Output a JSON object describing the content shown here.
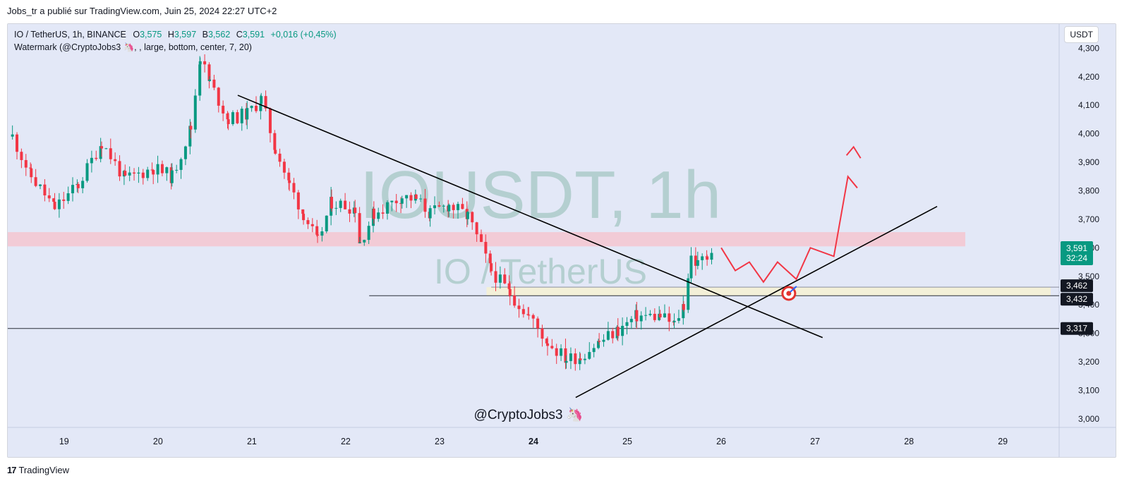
{
  "header": {
    "published_line": "Jobs_tr a publié sur TradingView.com, Juin 25, 2024 22:27 UTC+2"
  },
  "legend": {
    "symbol_line_prefix": "IO / TetherUS, 1h, BINANCE",
    "o_label": "O",
    "o_value": "3,575",
    "h_label": "H",
    "h_value": "3,597",
    "b_label": "B",
    "b_value": "3,562",
    "c_label": "C",
    "c_value": "3,591",
    "change": "+0,016 (+0,45%)",
    "watermark_line": "Watermark (@CryptoJobs3 🦄, , large, bottom, center, 7, 20)"
  },
  "currency_button": "USDT",
  "watermark": {
    "big_text": "IOUSDT, 1h",
    "sub_text": "IO / TetherUS",
    "handle": "@CryptoJobs3 🦄"
  },
  "footer": {
    "logo_mark": "17",
    "brand": "TradingView"
  },
  "colors": {
    "background": "#e3e8f7",
    "up": "#089981",
    "down": "#f23645",
    "trendline": "#000000",
    "projection": "#f23645",
    "resistance_zone": "#f5c6d0",
    "support_zone": "#f3f0d6",
    "price_tag": "#089981",
    "level_tag": "#131722"
  },
  "chart_data": {
    "type": "candlestick",
    "symbol": "IO / TetherUS",
    "timeframe": "1h",
    "exchange": "BINANCE",
    "x_tick_labels": [
      "19",
      "20",
      "21",
      "22",
      "23",
      "24",
      "25",
      "26",
      "27",
      "28",
      "29"
    ],
    "x_tick_days": [
      19,
      20,
      21,
      22,
      23,
      24,
      25,
      26,
      27,
      28,
      29
    ],
    "bold_x_tick": "24",
    "y_ticks": [
      3.0,
      3.1,
      3.2,
      3.3,
      3.4,
      3.5,
      3.6,
      3.7,
      3.8,
      3.9,
      4.0,
      4.1,
      4.2,
      4.3
    ],
    "y_tick_labels": [
      "3,000",
      "3,100",
      "3,200",
      "3,300",
      "3,400",
      "3,500",
      "3,600",
      "3,700",
      "3,800",
      "3,900",
      "4,000",
      "4,100",
      "4,200",
      "4,300"
    ],
    "ylim": [
      2.97,
      4.385
    ],
    "xlim_days": [
      18.4,
      29.6
    ],
    "price_path": [
      [
        18.45,
        3.99
      ],
      [
        18.65,
        3.85
      ],
      [
        18.9,
        3.74
      ],
      [
        19.15,
        3.82
      ],
      [
        19.4,
        3.97
      ],
      [
        19.65,
        3.84
      ],
      [
        19.95,
        3.88
      ],
      [
        20.15,
        3.85
      ],
      [
        20.35,
        4.02
      ],
      [
        20.45,
        4.27
      ],
      [
        20.55,
        4.18
      ],
      [
        20.75,
        4.05
      ],
      [
        20.95,
        4.07
      ],
      [
        21.1,
        4.12
      ],
      [
        21.25,
        3.95
      ],
      [
        21.4,
        3.82
      ],
      [
        21.55,
        3.72
      ],
      [
        21.7,
        3.62
      ],
      [
        21.85,
        3.76
      ],
      [
        22.1,
        3.74
      ],
      [
        22.15,
        3.62
      ],
      [
        22.3,
        3.72
      ],
      [
        22.6,
        3.78
      ],
      [
        22.75,
        3.77
      ],
      [
        22.9,
        3.72
      ],
      [
        23.1,
        3.75
      ],
      [
        23.3,
        3.71
      ],
      [
        23.55,
        3.52
      ],
      [
        23.75,
        3.44
      ],
      [
        23.95,
        3.36
      ],
      [
        24.15,
        3.27
      ],
      [
        24.35,
        3.21
      ],
      [
        24.5,
        3.22
      ],
      [
        24.7,
        3.27
      ],
      [
        24.9,
        3.31
      ],
      [
        25.1,
        3.36
      ],
      [
        25.35,
        3.36
      ],
      [
        25.5,
        3.33
      ],
      [
        25.6,
        3.4
      ],
      [
        25.68,
        3.57
      ],
      [
        25.75,
        3.54
      ],
      [
        25.85,
        3.58
      ],
      [
        25.91,
        3.591
      ]
    ],
    "last_price": "3,591",
    "countdown": "32:24",
    "horizontal_levels": [
      {
        "label": "3,462",
        "price": 3.462
      },
      {
        "label": "3,432",
        "price": 3.432
      },
      {
        "label": "3,317",
        "price": 3.317
      }
    ],
    "zones": [
      {
        "kind": "resistance",
        "from_price": 3.605,
        "to_price": 3.655
      },
      {
        "kind": "support",
        "from_price": 3.432,
        "to_price": 3.462
      }
    ],
    "trendlines": [
      {
        "kind": "descending",
        "points": [
          [
            20.85,
            4.135
          ],
          [
            27.08,
            3.285
          ]
        ]
      },
      {
        "kind": "ascending",
        "points": [
          [
            24.45,
            3.075
          ],
          [
            28.3,
            3.745
          ]
        ]
      }
    ],
    "projection_path": [
      [
        26.0,
        3.6
      ],
      [
        26.15,
        3.52
      ],
      [
        26.3,
        3.55
      ],
      [
        26.45,
        3.48
      ],
      [
        26.6,
        3.55
      ],
      [
        26.8,
        3.49
      ],
      [
        26.95,
        3.6
      ],
      [
        27.2,
        3.57
      ],
      [
        27.35,
        3.85
      ],
      [
        27.45,
        3.81
      ]
    ],
    "target_marker": {
      "day": 26.72,
      "price": 3.44
    }
  }
}
